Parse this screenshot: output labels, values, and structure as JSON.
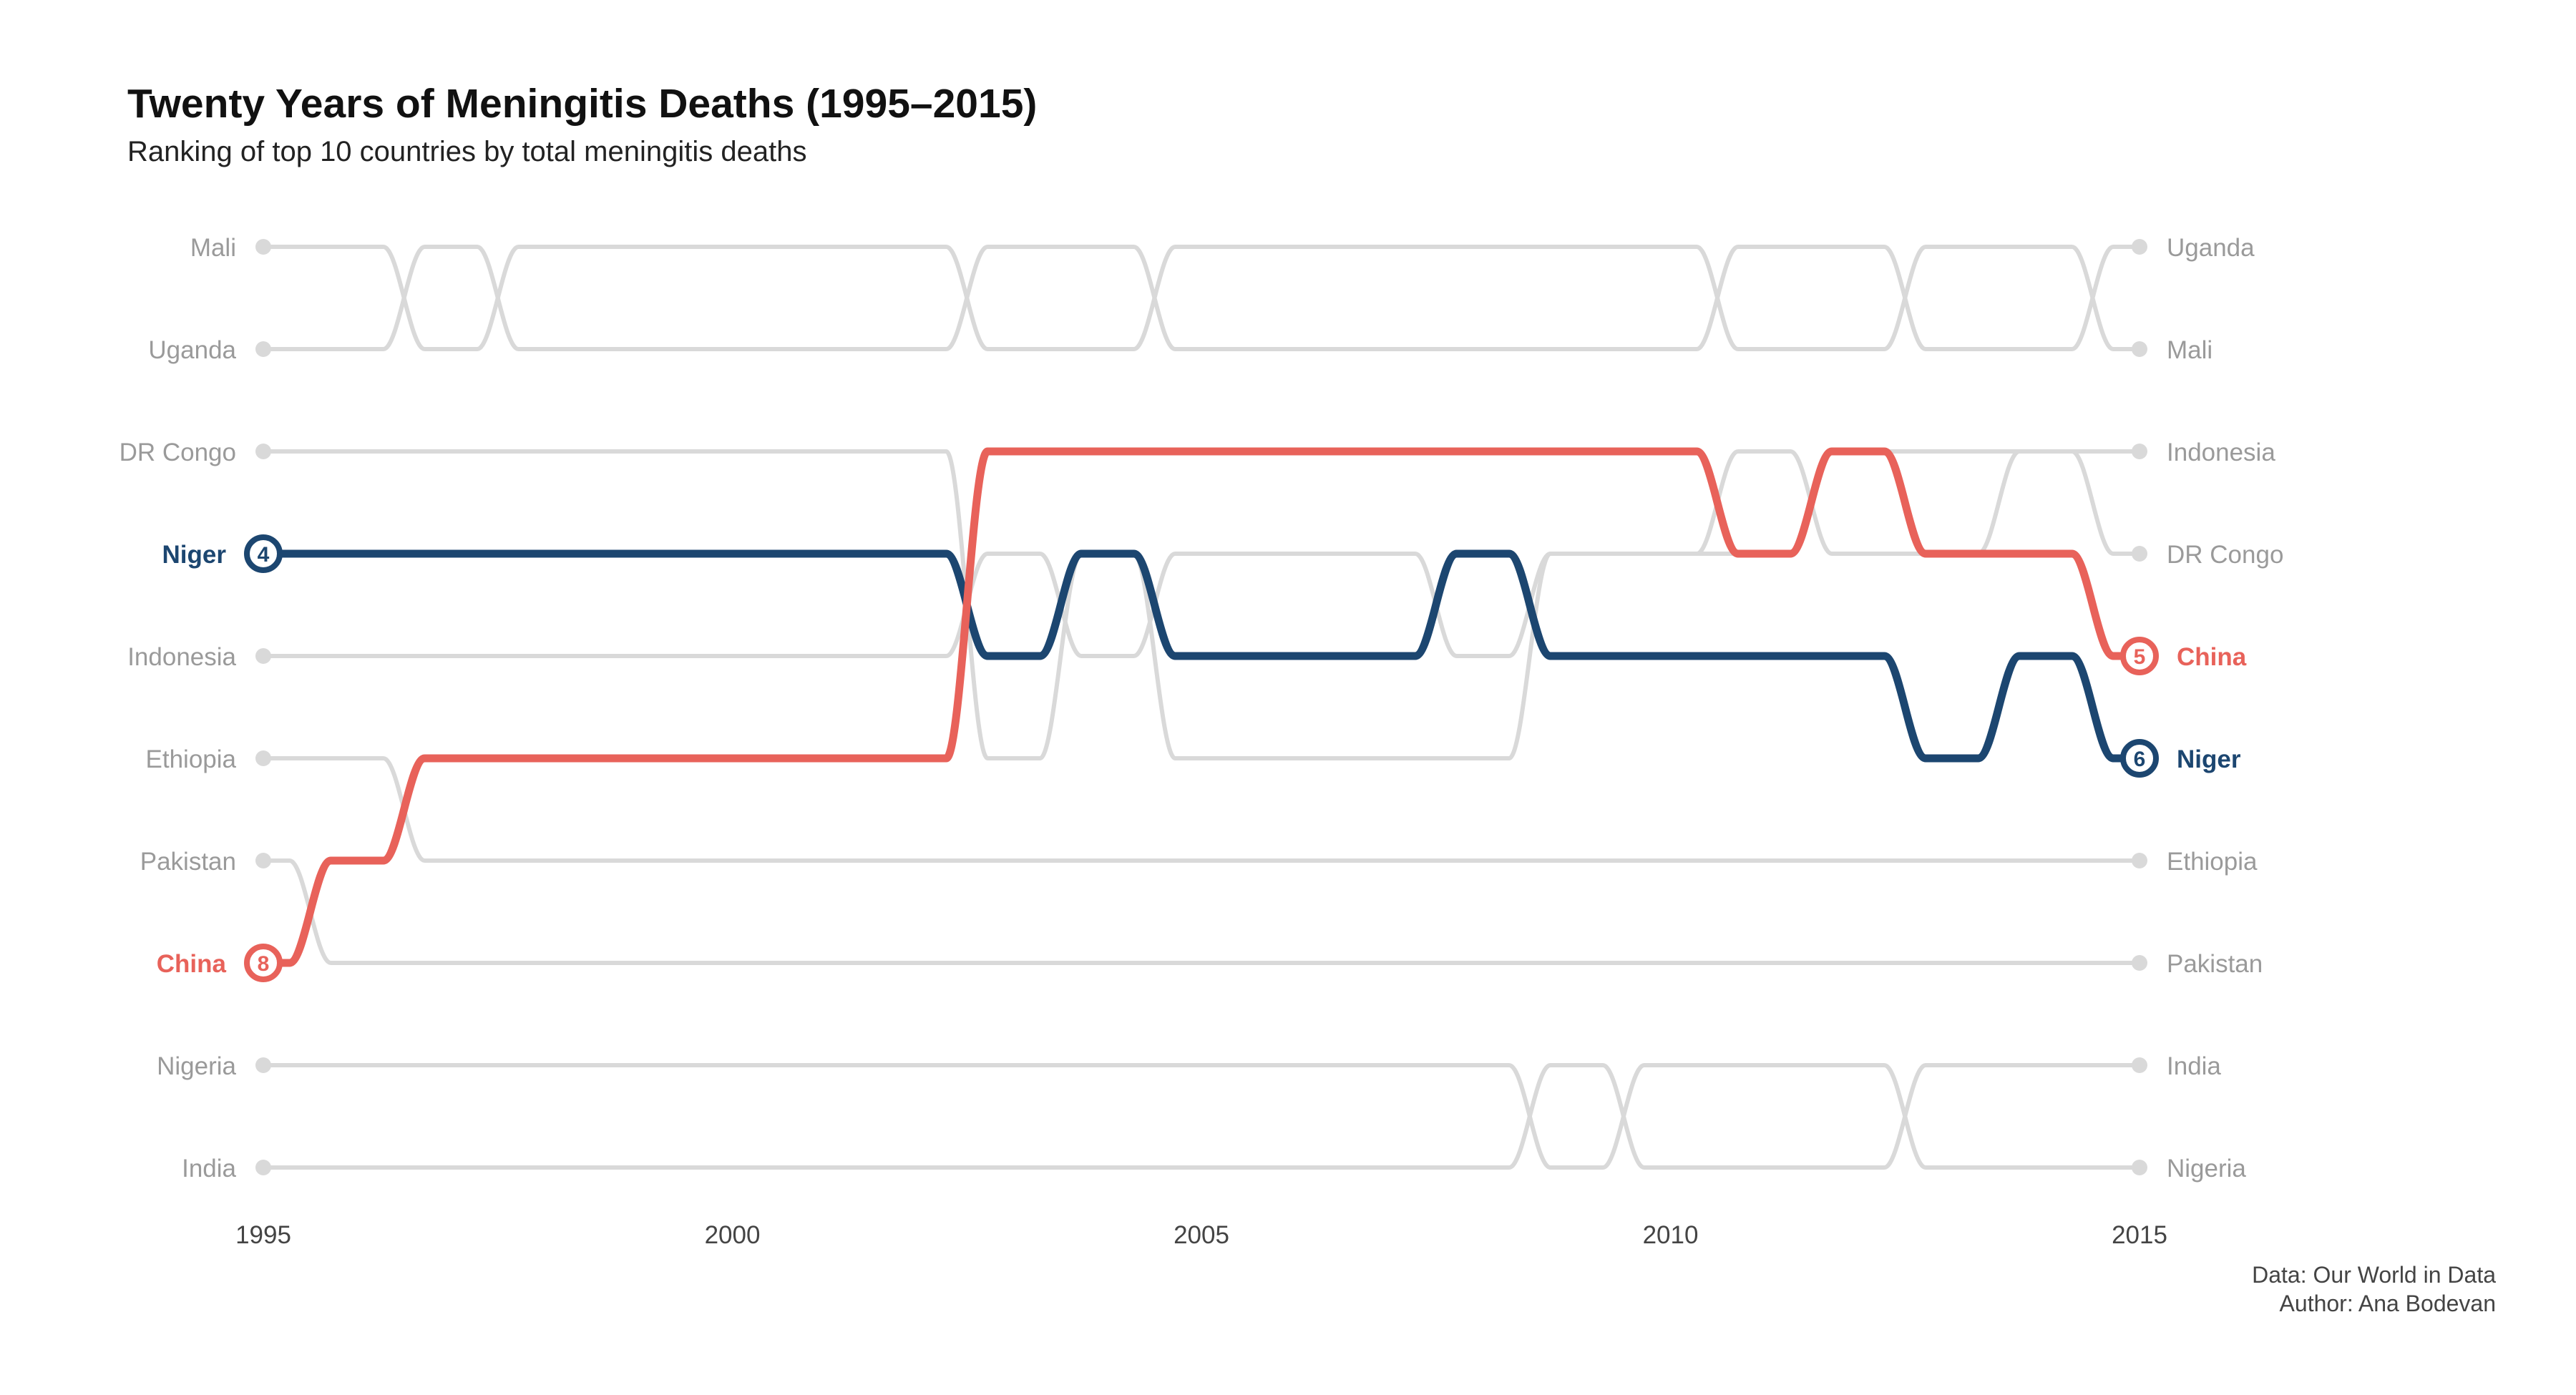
{
  "title": "Twenty Years of Meningitis Deaths (1995–2015)",
  "subtitle": "Ranking of top 10 countries by total meningitis deaths",
  "caption": {
    "source": "Data: Our World in Data",
    "author": "Author: Ana Bodevan"
  },
  "colors": {
    "background": "#ffffff",
    "other": "#d9d9d9",
    "china": "#e8625a",
    "niger": "#1c4670",
    "label_gray": "#9a9a9a"
  },
  "chart_data": {
    "type": "bump",
    "years": [
      1995,
      1996,
      1997,
      1998,
      1999,
      2000,
      2001,
      2002,
      2003,
      2004,
      2005,
      2006,
      2007,
      2008,
      2009,
      2010,
      2011,
      2012,
      2013,
      2014,
      2015
    ],
    "x_ticks": [
      1995,
      2000,
      2005,
      2010,
      2015
    ],
    "y_rank_range": [
      1,
      10
    ],
    "series": [
      {
        "name": "Mali",
        "ranks": [
          1,
          1,
          2,
          1,
          1,
          1,
          1,
          1,
          2,
          2,
          1,
          1,
          1,
          1,
          1,
          1,
          2,
          2,
          1,
          1,
          2
        ]
      },
      {
        "name": "Uganda",
        "ranks": [
          2,
          2,
          1,
          2,
          2,
          2,
          2,
          2,
          1,
          1,
          2,
          2,
          2,
          2,
          2,
          2,
          1,
          1,
          2,
          2,
          1
        ]
      },
      {
        "name": "DR Congo",
        "ranks": [
          3,
          3,
          3,
          3,
          3,
          3,
          3,
          3,
          6,
          4,
          6,
          6,
          6,
          6,
          4,
          4,
          4,
          3,
          3,
          3,
          4
        ]
      },
      {
        "name": "Niger",
        "ranks": [
          4,
          4,
          4,
          4,
          4,
          4,
          4,
          4,
          5,
          4,
          5,
          5,
          5,
          4,
          5,
          5,
          5,
          5,
          6,
          5,
          6
        ]
      },
      {
        "name": "Indonesia",
        "ranks": [
          5,
          5,
          5,
          5,
          5,
          5,
          5,
          5,
          4,
          5,
          4,
          4,
          4,
          5,
          4,
          4,
          3,
          4,
          4,
          3,
          3
        ]
      },
      {
        "name": "Ethiopia",
        "ranks": [
          6,
          6,
          7,
          7,
          7,
          7,
          7,
          7,
          7,
          7,
          7,
          7,
          7,
          7,
          7,
          7,
          7,
          7,
          7,
          7,
          7
        ]
      },
      {
        "name": "Pakistan",
        "ranks": [
          7,
          8,
          8,
          8,
          8,
          8,
          8,
          8,
          8,
          8,
          8,
          8,
          8,
          8,
          8,
          8,
          8,
          8,
          8,
          8,
          8
        ]
      },
      {
        "name": "China",
        "ranks": [
          8,
          7,
          6,
          6,
          6,
          6,
          6,
          6,
          3,
          3,
          3,
          3,
          3,
          3,
          3,
          3,
          4,
          3,
          4,
          4,
          5
        ]
      },
      {
        "name": "Nigeria",
        "ranks": [
          9,
          9,
          9,
          9,
          9,
          9,
          9,
          9,
          9,
          9,
          9,
          9,
          9,
          9,
          10,
          9,
          9,
          9,
          10,
          10,
          10
        ]
      },
      {
        "name": "India",
        "ranks": [
          10,
          10,
          10,
          10,
          10,
          10,
          10,
          10,
          10,
          10,
          10,
          10,
          10,
          10,
          9,
          10,
          10,
          10,
          9,
          9,
          9
        ]
      }
    ],
    "left_labels": [
      "Mali",
      "Uganda",
      "DR Congo",
      "Niger",
      "Indonesia",
      "Ethiopia",
      "Pakistan",
      "China",
      "Nigeria",
      "India"
    ],
    "right_labels": [
      "Uganda",
      "Mali",
      "Indonesia",
      "DR Congo",
      "China",
      "Niger",
      "Ethiopia",
      "Pakistan",
      "India",
      "Nigeria"
    ],
    "highlighted": [
      {
        "name": "China",
        "start_rank": "8",
        "end_rank": "5"
      },
      {
        "name": "Niger",
        "start_rank": "4",
        "end_rank": "6"
      }
    ]
  }
}
